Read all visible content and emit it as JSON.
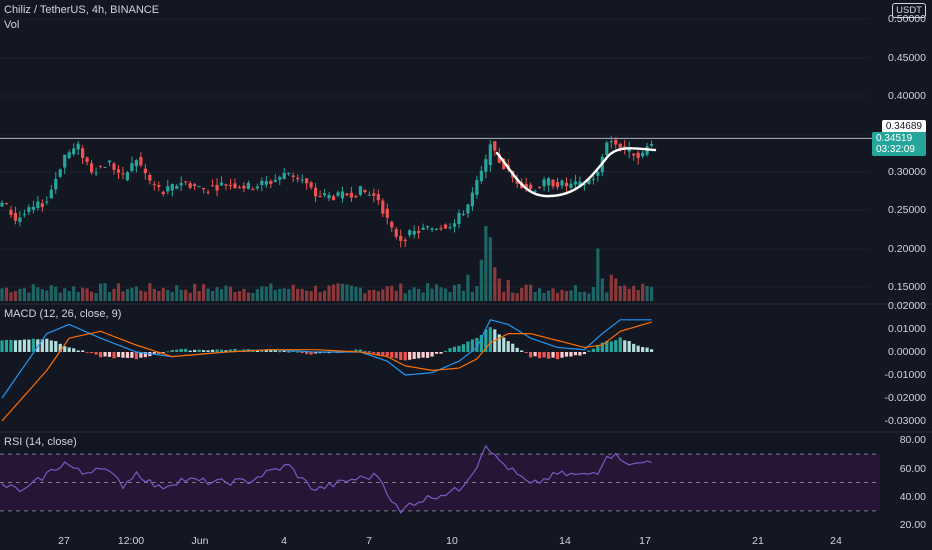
{
  "header": {
    "symbol": "Chiliz / TetherUS, 4h, BINANCE",
    "vol_label": "Vol",
    "macd_label": "MACD (12, 26, close, 9)",
    "rsi_label": "RSI (14, close)"
  },
  "price_axis": {
    "unit": "USDT",
    "ticks": [
      "0.50000",
      "0.45000",
      "0.40000",
      "0.35000",
      "0.30000",
      "0.25000",
      "0.20000",
      "0.15000"
    ],
    "last_close_label": "0.34689",
    "current_price_label": "0.34519",
    "countdown": "03:32:09"
  },
  "macd_axis": {
    "ticks": [
      "0.02000",
      "0.01000",
      "0.00000",
      "-0.01000",
      "-0.02000",
      "-0.03000"
    ]
  },
  "rsi_axis": {
    "ticks": [
      "80.00",
      "60.00",
      "40.00",
      "20.00"
    ]
  },
  "time_axis": {
    "ticks": [
      "27",
      "12:00",
      "Jun",
      "4",
      "7",
      "10",
      "14",
      "17",
      "21",
      "24"
    ]
  },
  "colors": {
    "background": "#131722",
    "up": "#26a69a",
    "down": "#ef5350",
    "macd_line": "#2196f3",
    "signal_line": "#ff6d00",
    "rsi_line": "#7e57c2",
    "rsi_band": "#2a1538",
    "annotation": "#ffffff"
  },
  "chart_data": {
    "type": "candlestick",
    "title": "Chiliz / TetherUS, 4h, BINANCE",
    "ylim": [
      0.13,
      0.51
    ],
    "resistance_level": 0.3469,
    "annotation": "cup-shaped curve drawn from ~0.34 down to ~0.27 and back up to ~0.34",
    "price_anchors": [
      {
        "i": 0,
        "p": 0.265
      },
      {
        "i": 3,
        "p": 0.24
      },
      {
        "i": 10,
        "p": 0.265
      },
      {
        "i": 14,
        "p": 0.325
      },
      {
        "i": 17,
        "p": 0.335
      },
      {
        "i": 20,
        "p": 0.305
      },
      {
        "i": 24,
        "p": 0.315
      },
      {
        "i": 27,
        "p": 0.295
      },
      {
        "i": 30,
        "p": 0.32
      },
      {
        "i": 33,
        "p": 0.29
      },
      {
        "i": 36,
        "p": 0.275
      },
      {
        "i": 40,
        "p": 0.29
      },
      {
        "i": 45,
        "p": 0.28
      },
      {
        "i": 50,
        "p": 0.287
      },
      {
        "i": 55,
        "p": 0.283
      },
      {
        "i": 60,
        "p": 0.29
      },
      {
        "i": 64,
        "p": 0.302
      },
      {
        "i": 67,
        "p": 0.292
      },
      {
        "i": 70,
        "p": 0.272
      },
      {
        "i": 75,
        "p": 0.27
      },
      {
        "i": 80,
        "p": 0.278
      },
      {
        "i": 84,
        "p": 0.268
      },
      {
        "i": 87,
        "p": 0.225
      },
      {
        "i": 89,
        "p": 0.215
      },
      {
        "i": 93,
        "p": 0.225
      },
      {
        "i": 98,
        "p": 0.232
      },
      {
        "i": 101,
        "p": 0.235
      },
      {
        "i": 104,
        "p": 0.26
      },
      {
        "i": 108,
        "p": 0.315
      },
      {
        "i": 109,
        "p": 0.345
      },
      {
        "i": 110,
        "p": 0.325
      },
      {
        "i": 114,
        "p": 0.295
      },
      {
        "i": 118,
        "p": 0.28
      },
      {
        "i": 122,
        "p": 0.29
      },
      {
        "i": 126,
        "p": 0.285
      },
      {
        "i": 129,
        "p": 0.285
      },
      {
        "i": 131,
        "p": 0.292
      },
      {
        "i": 133,
        "p": 0.3
      },
      {
        "i": 135,
        "p": 0.345
      },
      {
        "i": 137,
        "p": 0.34
      },
      {
        "i": 140,
        "p": 0.33
      },
      {
        "i": 143,
        "p": 0.325
      },
      {
        "i": 145,
        "p": 0.345
      }
    ],
    "macd_anchors": [
      {
        "i": 0,
        "h": 0.005,
        "m": -0.02,
        "s": -0.03
      },
      {
        "i": 10,
        "h": 0.006,
        "m": 0.008,
        "s": -0.008
      },
      {
        "i": 15,
        "h": 0.002,
        "m": 0.012,
        "s": 0.006
      },
      {
        "i": 22,
        "h": -0.002,
        "m": 0.006,
        "s": 0.009
      },
      {
        "i": 30,
        "h": -0.003,
        "m": 0.0,
        "s": 0.003
      },
      {
        "i": 38,
        "h": 0.001,
        "m": -0.002,
        "s": -0.002
      },
      {
        "i": 50,
        "h": 0.001,
        "m": 0.0,
        "s": 0.0
      },
      {
        "i": 60,
        "h": 0.001,
        "m": 0.001,
        "s": 0.001
      },
      {
        "i": 70,
        "h": -0.001,
        "m": 0.0,
        "s": 0.001
      },
      {
        "i": 80,
        "h": 0.001,
        "m": 0.0,
        "s": 0.0
      },
      {
        "i": 86,
        "h": -0.002,
        "m": -0.004,
        "s": -0.002
      },
      {
        "i": 90,
        "h": -0.004,
        "m": -0.01,
        "s": -0.006
      },
      {
        "i": 96,
        "h": -0.002,
        "m": -0.009,
        "s": -0.008
      },
      {
        "i": 102,
        "h": 0.003,
        "m": -0.004,
        "s": -0.007
      },
      {
        "i": 106,
        "h": 0.006,
        "m": 0.002,
        "s": -0.003
      },
      {
        "i": 109,
        "h": 0.011,
        "m": 0.014,
        "s": 0.004
      },
      {
        "i": 113,
        "h": 0.005,
        "m": 0.012,
        "s": 0.008
      },
      {
        "i": 118,
        "h": -0.002,
        "m": 0.006,
        "s": 0.008
      },
      {
        "i": 124,
        "h": -0.003,
        "m": 0.002,
        "s": 0.005
      },
      {
        "i": 130,
        "h": -0.001,
        "m": 0.001,
        "s": 0.002
      },
      {
        "i": 134,
        "h": 0.004,
        "m": 0.008,
        "s": 0.003
      },
      {
        "i": 138,
        "h": 0.006,
        "m": 0.014,
        "s": 0.009
      },
      {
        "i": 145,
        "h": 0.001,
        "m": 0.014,
        "s": 0.013
      }
    ],
    "rsi_anchors": [
      {
        "i": 0,
        "r": 48
      },
      {
        "i": 5,
        "r": 44
      },
      {
        "i": 10,
        "r": 56
      },
      {
        "i": 14,
        "r": 64
      },
      {
        "i": 18,
        "r": 56
      },
      {
        "i": 22,
        "r": 62
      },
      {
        "i": 27,
        "r": 48
      },
      {
        "i": 30,
        "r": 57
      },
      {
        "i": 35,
        "r": 46
      },
      {
        "i": 40,
        "r": 52
      },
      {
        "i": 48,
        "r": 50
      },
      {
        "i": 55,
        "r": 51
      },
      {
        "i": 60,
        "r": 58
      },
      {
        "i": 64,
        "r": 62
      },
      {
        "i": 67,
        "r": 52
      },
      {
        "i": 70,
        "r": 45
      },
      {
        "i": 78,
        "r": 52
      },
      {
        "i": 84,
        "r": 55
      },
      {
        "i": 87,
        "r": 38
      },
      {
        "i": 89,
        "r": 28
      },
      {
        "i": 91,
        "r": 35
      },
      {
        "i": 96,
        "r": 40
      },
      {
        "i": 102,
        "r": 45
      },
      {
        "i": 106,
        "r": 62
      },
      {
        "i": 108,
        "r": 78
      },
      {
        "i": 110,
        "r": 68
      },
      {
        "i": 114,
        "r": 58
      },
      {
        "i": 118,
        "r": 48
      },
      {
        "i": 124,
        "r": 56
      },
      {
        "i": 130,
        "r": 55
      },
      {
        "i": 133,
        "r": 58
      },
      {
        "i": 135,
        "r": 70
      },
      {
        "i": 138,
        "r": 68
      },
      {
        "i": 141,
        "r": 62
      },
      {
        "i": 145,
        "r": 66
      }
    ],
    "volume_spikes": [
      {
        "i": 104,
        "v": 0.35
      },
      {
        "i": 107,
        "v": 0.55
      },
      {
        "i": 108,
        "v": 1.0
      },
      {
        "i": 109,
        "v": 0.85
      },
      {
        "i": 110,
        "v": 0.45
      },
      {
        "i": 111,
        "v": 0.3
      },
      {
        "i": 113,
        "v": 0.28
      },
      {
        "i": 133,
        "v": 0.7
      },
      {
        "i": 134,
        "v": 0.3
      },
      {
        "i": 136,
        "v": 0.35
      },
      {
        "i": 137,
        "v": 0.3
      },
      {
        "i": 138,
        "v": 0.2
      }
    ]
  }
}
